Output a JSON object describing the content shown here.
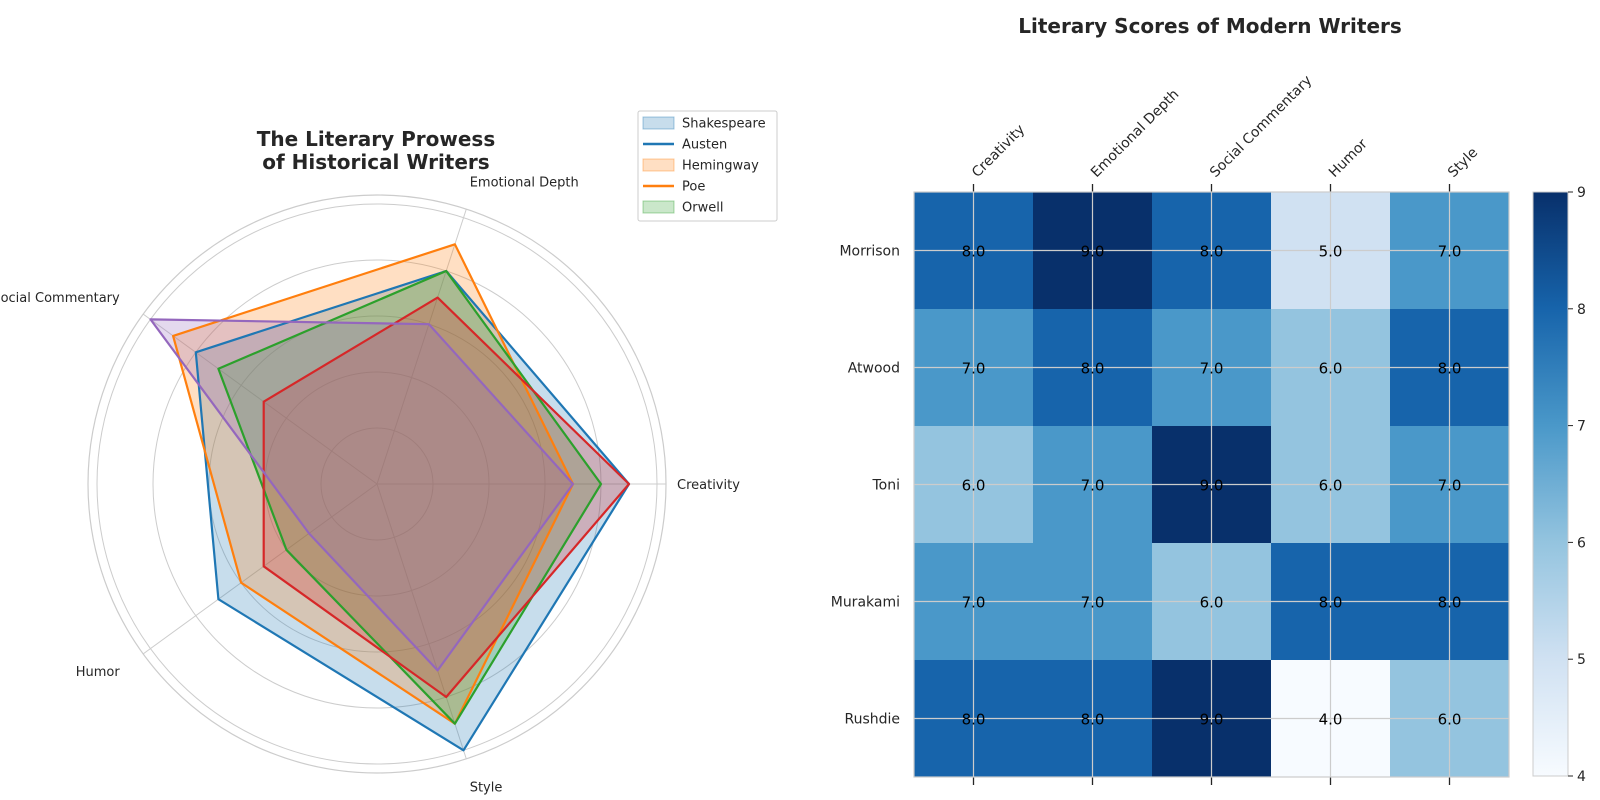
{
  "colors": {
    "Shakespeare": "#1f77b4",
    "Austen": "#1f77b4",
    "Hemingway": "#ff7f0e",
    "Poe": "#ff7f0e",
    "Orwell": "#2ca02c",
    "series6": "#d62728",
    "series7": "#9467bd",
    "grid": "#cccccc",
    "heatmap_low": "#f7fbff",
    "heatmap_high": "#08306b"
  },
  "chart_data": [
    {
      "type": "radar",
      "title": "The Literary Prowess\nof Historical Writers",
      "axes": [
        "Creativity",
        "Emotional Depth",
        "Social Commentary",
        "Humor",
        "Style"
      ],
      "rlim": [
        0,
        10
      ],
      "grid": true,
      "legend_position": "top-right",
      "legend": [
        {
          "label": "Shakespeare",
          "style": "fill"
        },
        {
          "label": "Austen",
          "style": "line"
        },
        {
          "label": "Hemingway",
          "style": "fill"
        },
        {
          "label": "Poe",
          "style": "line"
        },
        {
          "label": "Orwell",
          "style": "fill"
        }
      ],
      "series": [
        {
          "values": [
            9,
            8,
            8,
            7,
            10
          ]
        },
        {
          "values": [
            7,
            9,
            9,
            6,
            9
          ]
        },
        {
          "values": [
            8,
            8,
            7,
            4,
            9
          ]
        },
        {
          "values": [
            9,
            7,
            5,
            5,
            8
          ]
        },
        {
          "values": [
            7,
            6,
            10,
            3,
            7
          ]
        }
      ]
    },
    {
      "type": "heatmap",
      "title": "Literary Scores of Modern Writers",
      "columns": [
        "Creativity",
        "Emotional Depth",
        "Social Commentary",
        "Humor",
        "Style"
      ],
      "rows": [
        "Morrison",
        "Atwood",
        "Toni",
        "Murakami",
        "Rushdie"
      ],
      "values": [
        [
          8,
          9,
          8,
          5,
          7
        ],
        [
          7,
          8,
          7,
          6,
          8
        ],
        [
          6,
          7,
          9,
          6,
          7
        ],
        [
          7,
          7,
          6,
          8,
          8
        ],
        [
          8,
          8,
          9,
          4,
          6
        ]
      ],
      "colorbar": {
        "min": 4,
        "max": 9,
        "ticks": [
          "4",
          "5",
          "6",
          "7",
          "8",
          "9"
        ]
      },
      "grid": true,
      "cmap": "Blues"
    }
  ]
}
